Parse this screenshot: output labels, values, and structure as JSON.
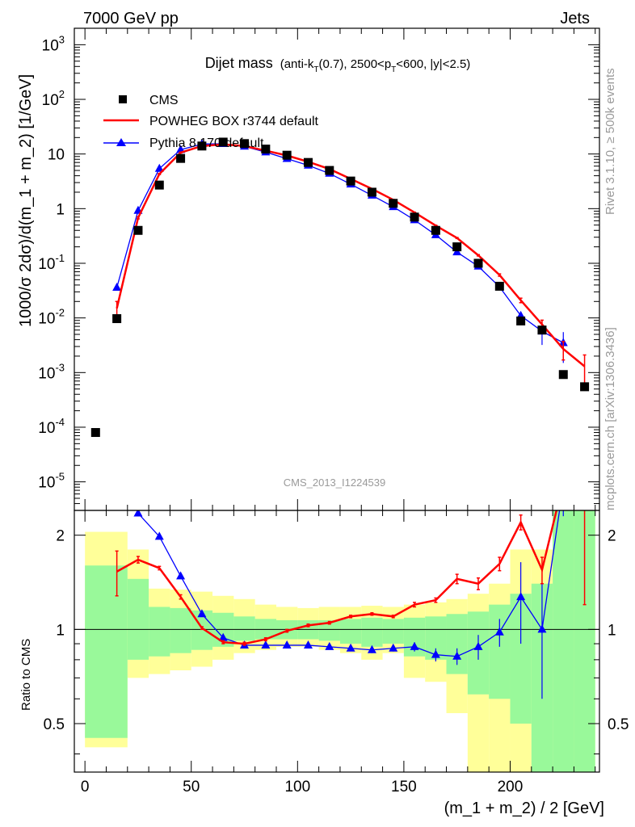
{
  "header": {
    "left": "7000 GeV pp",
    "right": "Jets"
  },
  "side_labels": {
    "rivet": "Rivet 3.1.10, ≥ 500k events",
    "source": "mcplots.cern.ch [arXiv:1306.3436]"
  },
  "watermark": "CMS_2013_I1224539",
  "title": {
    "main": "Dijet mass",
    "cuts_prefix": "(anti-k",
    "cuts_sub1": "T",
    "cuts_mid": "(0.7), 2500<p",
    "cuts_sub2": "T",
    "cuts_suffix": "<600, |y|<2.5)"
  },
  "chart_data": [
    {
      "type": "scatter",
      "panel": "main",
      "xlabel": "(m_1 + m_2) / 2 [GeV]",
      "ylabel": "1000/σ 2dσ)/d(m_1 + m_2) [1/GeV]",
      "xlim": [
        -5,
        242
      ],
      "ylim": [
        3e-06,
        2000
      ],
      "log_y": true,
      "x_ticks": [
        0,
        50,
        100,
        150,
        200
      ],
      "y_tick_labels": [
        "10^-5",
        "10^-4",
        "10^-3",
        "10^-2",
        "10^-1",
        "1",
        "10",
        "10^2",
        "10^3"
      ],
      "legend_position": "top-left",
      "series": [
        {
          "name": "CMS",
          "color": "#000000",
          "style": "square-markers",
          "x": [
            5,
            15,
            25,
            35,
            45,
            55,
            65,
            75,
            85,
            95,
            105,
            115,
            125,
            135,
            145,
            155,
            165,
            175,
            185,
            195,
            205,
            215,
            225,
            235
          ],
          "y": [
            8e-05,
            0.0097,
            0.4,
            2.7,
            8.3,
            14.0,
            16.5,
            15.5,
            12.3,
            9.5,
            7.0,
            5.0,
            3.2,
            2.0,
            1.25,
            0.7,
            0.4,
            0.2,
            0.1,
            0.038,
            0.0088,
            0.006,
            0.00092,
            0.00055
          ]
        },
        {
          "name": "POWHEG BOX r3744 default",
          "color": "#ff0000",
          "style": "line-with-error-bars",
          "x": [
            15,
            25,
            35,
            45,
            55,
            65,
            75,
            85,
            95,
            105,
            115,
            125,
            135,
            145,
            155,
            165,
            175,
            185,
            195,
            205,
            215,
            225,
            235
          ],
          "y": [
            0.015,
            0.68,
            4.3,
            10.6,
            14.0,
            15.0,
            14.0,
            11.5,
            9.4,
            7.2,
            5.3,
            3.5,
            2.3,
            1.45,
            0.85,
            0.49,
            0.29,
            0.14,
            0.061,
            0.021,
            0.0076,
            0.0027,
            0.0013
          ],
          "err": [
            0.005,
            0.03,
            0.1,
            0.2,
            0.2,
            0.2,
            0.2,
            0.15,
            0.1,
            0.08,
            0.06,
            0.04,
            0.03,
            0.02,
            0.012,
            0.008,
            0.006,
            0.004,
            0.003,
            0.002,
            0.0015,
            0.001,
            0.0008
          ]
        },
        {
          "name": "Pythia 8.170 default",
          "color": "#0000ff",
          "style": "line-with-triangles",
          "x": [
            15,
            25,
            35,
            45,
            55,
            65,
            75,
            85,
            95,
            105,
            115,
            125,
            135,
            145,
            155,
            165,
            175,
            185,
            195,
            205,
            215,
            225
          ],
          "y": [
            0.036,
            0.92,
            5.4,
            12.0,
            15.2,
            15.4,
            13.8,
            10.8,
            8.2,
            6.2,
            4.4,
            2.8,
            1.75,
            1.08,
            0.62,
            0.33,
            0.16,
            0.088,
            0.037,
            0.011,
            0.0057,
            0.0035
          ],
          "err": [
            0.004,
            0.03,
            0.08,
            0.15,
            0.15,
            0.15,
            0.15,
            0.1,
            0.08,
            0.06,
            0.04,
            0.03,
            0.02,
            0.015,
            0.01,
            0.008,
            0.006,
            0.004,
            0.003,
            0.002,
            0.0025,
            0.002
          ]
        }
      ]
    },
    {
      "type": "line",
      "panel": "ratio",
      "ylabel": "Ratio to CMS",
      "xlim": [
        -5,
        242
      ],
      "ylim": [
        0.35,
        2.4
      ],
      "log_y": true,
      "y_ticks": [
        0.5,
        1,
        2
      ],
      "reference_line": 1,
      "bands": {
        "bin_edges": [
          0,
          20,
          30,
          40,
          50,
          60,
          70,
          80,
          90,
          100,
          110,
          120,
          130,
          140,
          150,
          160,
          170,
          180,
          190,
          200,
          210,
          220,
          230,
          240
        ],
        "yellow": [
          [
            0.42,
            2.05
          ],
          [
            0.7,
            1.8
          ],
          [
            0.72,
            1.35
          ],
          [
            0.74,
            1.34
          ],
          [
            0.76,
            1.32
          ],
          [
            0.8,
            1.28
          ],
          [
            0.84,
            1.25
          ],
          [
            0.86,
            1.2
          ],
          [
            0.88,
            1.18
          ],
          [
            0.88,
            1.17
          ],
          [
            0.86,
            1.18
          ],
          [
            0.84,
            1.18
          ],
          [
            0.8,
            1.19
          ],
          [
            0.84,
            1.18
          ],
          [
            0.7,
            1.2
          ],
          [
            0.68,
            1.22
          ],
          [
            0.54,
            1.25
          ],
          [
            0.34,
            1.3
          ],
          [
            0.34,
            1.4
          ],
          [
            0.34,
            1.8
          ],
          [
            0.34,
            1.8
          ],
          [
            0.34,
            2.4
          ],
          [
            0.34,
            2.4
          ]
        ],
        "green": [
          [
            0.45,
            1.6
          ],
          [
            0.8,
            1.45
          ],
          [
            0.82,
            1.18
          ],
          [
            0.84,
            1.17
          ],
          [
            0.86,
            1.15
          ],
          [
            0.88,
            1.13
          ],
          [
            0.92,
            1.1
          ],
          [
            0.93,
            1.08
          ],
          [
            0.93,
            1.07
          ],
          [
            0.93,
            1.07
          ],
          [
            0.92,
            1.07
          ],
          [
            0.9,
            1.08
          ],
          [
            0.88,
            1.09
          ],
          [
            0.9,
            1.08
          ],
          [
            0.82,
            1.09
          ],
          [
            0.8,
            1.1
          ],
          [
            0.72,
            1.12
          ],
          [
            0.62,
            1.14
          ],
          [
            0.6,
            1.2
          ],
          [
            0.5,
            1.3
          ],
          [
            0.34,
            1.4
          ],
          [
            0.34,
            2.4
          ],
          [
            0.34,
            2.4
          ]
        ]
      },
      "series": [
        {
          "name": "POWHEG BOX r3744 default",
          "color": "#ff0000",
          "x": [
            15,
            25,
            35,
            45,
            55,
            65,
            75,
            85,
            95,
            105,
            115,
            125,
            135,
            145,
            155,
            165,
            175,
            185,
            195,
            205,
            215,
            225,
            235
          ],
          "y": [
            1.53,
            1.67,
            1.57,
            1.27,
            1.01,
            0.91,
            0.9,
            0.93,
            0.99,
            1.03,
            1.05,
            1.1,
            1.12,
            1.1,
            1.2,
            1.24,
            1.45,
            1.4,
            1.62,
            2.2,
            1.55,
            2.95,
            2.4
          ],
          "err_lo": [
            0.25,
            0.04,
            0.02,
            0.02,
            0.01,
            0.01,
            0.01,
            0.01,
            0.01,
            0.01,
            0.01,
            0.01,
            0.01,
            0.01,
            0.02,
            0.02,
            0.05,
            0.06,
            0.08,
            0.12,
            0.15,
            0.4,
            1.2
          ],
          "err_hi": [
            0.25,
            0.04,
            0.02,
            0.02,
            0.01,
            0.01,
            0.01,
            0.01,
            0.01,
            0.01,
            0.01,
            0.01,
            0.01,
            0.01,
            0.02,
            0.02,
            0.05,
            0.06,
            0.08,
            0.12,
            0.15,
            0.4,
            1.2
          ]
        },
        {
          "name": "Pythia 8.170 default",
          "color": "#0000ff",
          "x": [
            15,
            25,
            35,
            45,
            55,
            65,
            75,
            85,
            95,
            105,
            115,
            125,
            135,
            145,
            155,
            165,
            175,
            185,
            195,
            205,
            215,
            225
          ],
          "y": [
            3.7,
            2.35,
            1.98,
            1.48,
            1.12,
            0.94,
            0.89,
            0.89,
            0.89,
            0.89,
            0.88,
            0.87,
            0.86,
            0.87,
            0.88,
            0.83,
            0.82,
            0.88,
            0.98,
            1.27,
            1.0,
            2.9
          ],
          "err_lo": [
            0.3,
            0.04,
            0.02,
            0.02,
            0.01,
            0.01,
            0.01,
            0.01,
            0.01,
            0.01,
            0.01,
            0.01,
            0.02,
            0.02,
            0.03,
            0.04,
            0.05,
            0.08,
            0.1,
            0.37,
            0.4,
            0.6
          ],
          "err_hi": [
            0.3,
            0.04,
            0.02,
            0.02,
            0.01,
            0.01,
            0.01,
            0.01,
            0.01,
            0.01,
            0.01,
            0.01,
            0.02,
            0.02,
            0.03,
            0.04,
            0.05,
            0.08,
            0.1,
            0.37,
            0.4,
            0.6
          ]
        }
      ]
    }
  ]
}
